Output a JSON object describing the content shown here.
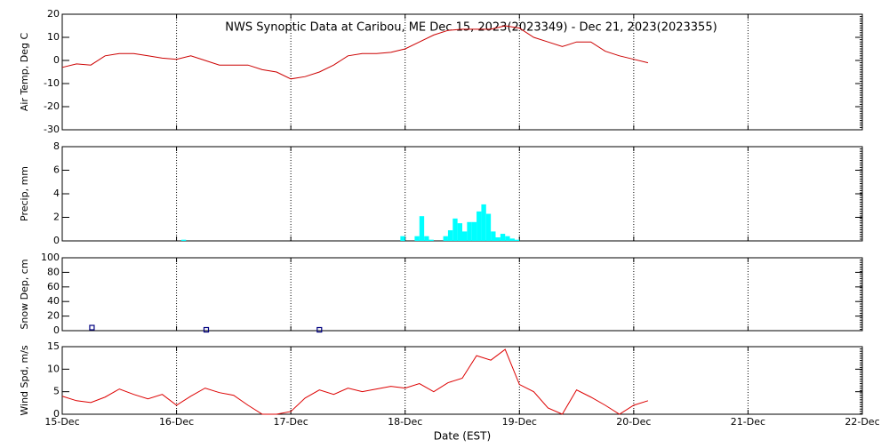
{
  "chart_data": [
    {
      "type": "line",
      "title": "NWS Synoptic Data at Caribou, ME   Dec 15, 2023(2023349) - Dec 21, 2023(2023355)",
      "y_label": "Air Temp, Deg C",
      "color": "#cc0000",
      "grid": true,
      "x": [
        0,
        0.125,
        0.25,
        0.375,
        0.5,
        0.625,
        0.75,
        0.875,
        1,
        1.125,
        1.25,
        1.375,
        1.5,
        1.625,
        1.75,
        1.875,
        2,
        2.125,
        2.25,
        2.375,
        2.5,
        2.625,
        2.75,
        2.875,
        3,
        3.125,
        3.25,
        3.375,
        3.5,
        3.625,
        3.75,
        3.875,
        4,
        4.125,
        4.25,
        4.375,
        4.5,
        4.625,
        4.75,
        4.875,
        5,
        5.125
      ],
      "values": [
        -3,
        -1.5,
        -2,
        2,
        3,
        3,
        2,
        1,
        0.5,
        2,
        0,
        -2,
        -2,
        -2,
        -4,
        -5,
        -8,
        -7,
        -5,
        -2,
        2,
        3,
        3,
        3.5,
        5,
        8,
        11,
        13,
        13.5,
        13.5,
        13.5,
        15,
        14,
        10,
        8,
        6,
        8,
        8,
        4,
        2,
        0.5,
        -1
      ],
      "xlim": [
        0,
        7
      ],
      "xticks": [
        0,
        1,
        2,
        3,
        4,
        5,
        6,
        7
      ],
      "ylim": [
        -30,
        20
      ],
      "yticks": [
        -30,
        -20,
        -10,
        0,
        10,
        20
      ]
    },
    {
      "type": "bar",
      "y_label": "Precip, mm",
      "color": "#00ffff",
      "grid": true,
      "x": [
        1.0417,
        2.9583,
        3.0833,
        3.125,
        3.1667,
        3.2083,
        3.3333,
        3.375,
        3.4167,
        3.4583,
        3.5,
        3.5417,
        3.5833,
        3.625,
        3.6667,
        3.7083,
        3.75,
        3.7917,
        3.8333,
        3.875,
        3.9167,
        3.9583
      ],
      "values": [
        0.1,
        0.4,
        0.4,
        2.1,
        0.4,
        0.1,
        0.4,
        0.9,
        1.9,
        1.5,
        0.8,
        1.6,
        1.6,
        2.5,
        3.1,
        2.3,
        0.8,
        0.3,
        0.6,
        0.4,
        0.2,
        0.1
      ],
      "xlim": [
        0,
        7
      ],
      "xticks": [
        0,
        1,
        2,
        3,
        4,
        5,
        6,
        7
      ],
      "ylim": [
        0,
        8
      ],
      "yticks": [
        0,
        2,
        4,
        6,
        8
      ]
    },
    {
      "type": "scatter",
      "y_label": "Snow Dep, cm",
      "color": "#000080",
      "grid": true,
      "x": [
        0.26,
        1.26,
        2.25
      ],
      "values": [
        3,
        0,
        0
      ],
      "xlim": [
        0,
        7
      ],
      "xticks": [
        0,
        1,
        2,
        3,
        4,
        5,
        6,
        7
      ],
      "ylim": [
        0,
        100
      ],
      "yticks": [
        0,
        20,
        40,
        60,
        80,
        100
      ]
    },
    {
      "type": "line",
      "y_label": "Wind Spd, m/s",
      "x_label": "Date (EST)",
      "color": "#dd0000",
      "grid": true,
      "x": [
        0,
        0.125,
        0.25,
        0.375,
        0.5,
        0.625,
        0.75,
        0.875,
        1,
        1.125,
        1.25,
        1.375,
        1.5,
        1.625,
        1.75,
        1.875,
        2,
        2.125,
        2.25,
        2.375,
        2.5,
        2.625,
        2.75,
        2.875,
        3,
        3.125,
        3.25,
        3.375,
        3.5,
        3.625,
        3.75,
        3.875,
        4,
        4.125,
        4.25,
        4.375,
        4.5,
        4.625,
        4.75,
        4.875,
        5,
        5.125
      ],
      "values": [
        4,
        3,
        2.6,
        3.8,
        5.6,
        4.4,
        3.4,
        4.4,
        2,
        4,
        5.8,
        4.8,
        4.2,
        2,
        0,
        0,
        0.6,
        3.6,
        5.4,
        4.4,
        5.8,
        5,
        5.6,
        6.2,
        5.8,
        6.8,
        5,
        7,
        8,
        13,
        12,
        14.4,
        6.6,
        5,
        1.4,
        0,
        5.4,
        3.8,
        2,
        0,
        2,
        3
      ],
      "xlim": [
        0,
        7
      ],
      "xticks": [
        {
          "value": 0,
          "label": "15-Dec"
        },
        {
          "value": 1,
          "label": "16-Dec"
        },
        {
          "value": 2,
          "label": "17-Dec"
        },
        {
          "value": 3,
          "label": "18-Dec"
        },
        {
          "value": 4,
          "label": "19-Dec"
        },
        {
          "value": 5,
          "label": "20-Dec"
        },
        {
          "value": 6,
          "label": "21-Dec"
        },
        {
          "value": 7,
          "label": "22-Dec"
        }
      ],
      "ylim": [
        0,
        15
      ],
      "yticks": [
        0,
        5,
        10,
        15
      ]
    }
  ]
}
